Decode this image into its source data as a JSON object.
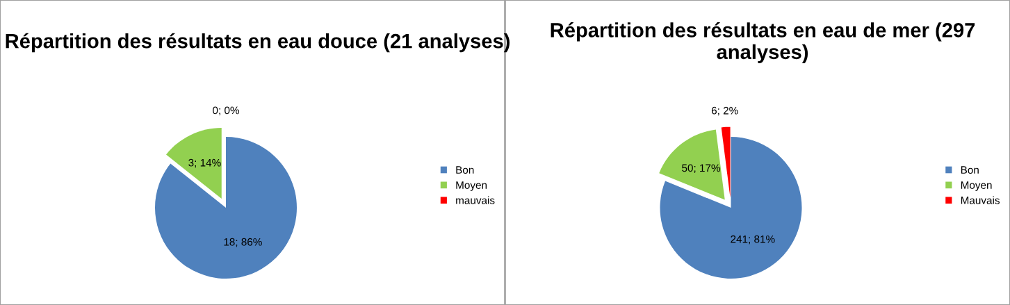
{
  "chart_data": [
    {
      "type": "pie",
      "title": "Répartition des résultats en eau douce (21 analyses)",
      "categories": [
        "Bon",
        "Moyen",
        "mauvais"
      ],
      "values": [
        18,
        3,
        0
      ],
      "colors": [
        "#4f81bd",
        "#92d050",
        "#ff0000"
      ],
      "value_labels": [
        "18; 86%",
        "3; 14%",
        "0; 0%"
      ],
      "legend": "right"
    },
    {
      "type": "pie",
      "title": "Répartition des résultats en eau de mer (297 analyses)",
      "categories": [
        "Bon",
        "Moyen",
        "Mauvais"
      ],
      "values": [
        241,
        50,
        6
      ],
      "colors": [
        "#4f81bd",
        "#92d050",
        "#ff0000"
      ],
      "value_labels": [
        "241; 81%",
        "50; 17%",
        "6; 2%"
      ],
      "legend": "right"
    }
  ]
}
